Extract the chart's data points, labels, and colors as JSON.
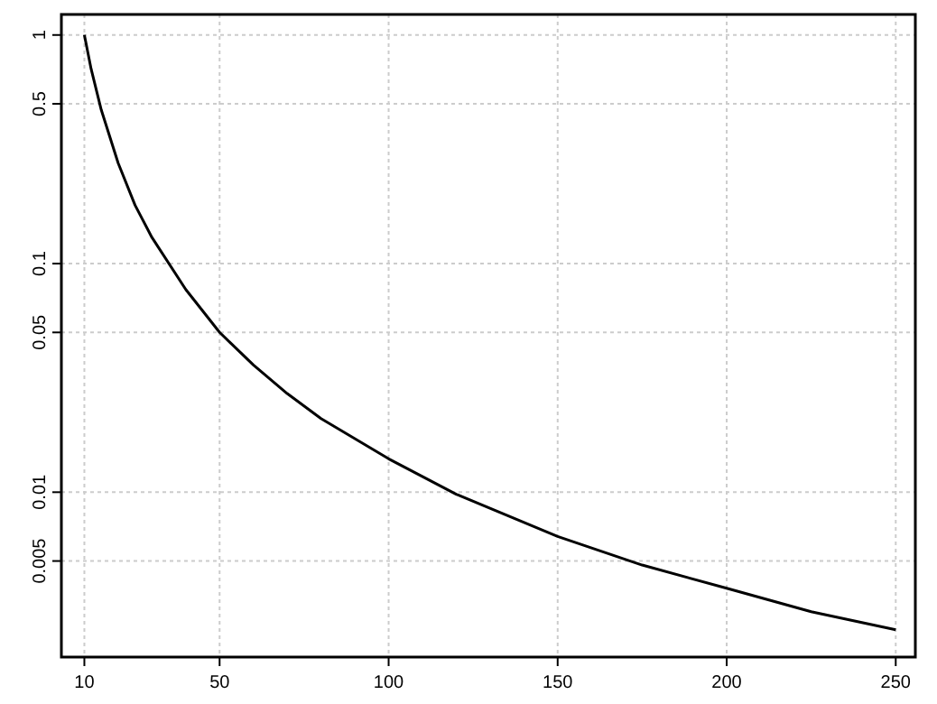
{
  "chart_data": {
    "type": "line",
    "log": "y",
    "grid": true,
    "x": [
      10,
      12,
      15,
      20,
      25,
      30,
      40,
      50,
      60,
      70,
      80,
      100,
      120,
      150,
      175,
      200,
      225,
      250
    ],
    "series": [
      {
        "color": "#000000",
        "values": [
          1,
          0.71,
          0.47,
          0.275,
          0.18,
          0.13,
          0.077,
          0.05,
          0.036,
          0.027,
          0.021,
          0.014,
          0.0098,
          0.0064,
          0.0048,
          0.0038,
          0.003,
          0.0025
        ]
      }
    ],
    "xlim": [
      3.2,
      255.8
    ],
    "xticks": [
      10,
      50,
      100,
      150,
      200,
      250
    ],
    "ylim": [
      0.0019,
      1.23
    ],
    "yticks": [
      {
        "value": 1,
        "label": "1"
      },
      {
        "value": 0.5,
        "label": "0.5"
      },
      {
        "value": 0.1,
        "label": "0.1"
      },
      {
        "value": 0.05,
        "label": "0.05"
      },
      {
        "value": 0.01,
        "label": "0.01"
      },
      {
        "value": 0.005,
        "label": "0.005"
      }
    ],
    "marker": "none",
    "line_style": "solid"
  }
}
